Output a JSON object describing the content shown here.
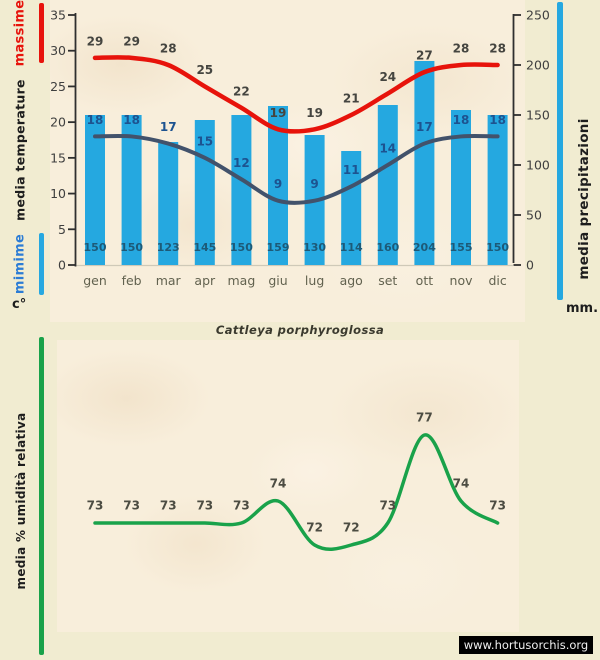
{
  "page": {
    "title": "Cattleya porphyroglossa",
    "watermark": "www.hortusorchis.org"
  },
  "labels": {
    "massime": "massime",
    "minime": "mimime",
    "temperature": "media temperature",
    "celsius": "c°",
    "precipitazioni": "media precipitazioni",
    "mm": "mm.",
    "umidita": "media % umidità relativa"
  },
  "colors": {
    "background": "#f1ecd1",
    "panel": "#f8eedb",
    "bar_blue": "#25a8e0",
    "massime_red": "#e7130b",
    "minime_dark": "#42526b",
    "humidity_green": "#19a24a",
    "axis": "#2f2f2f",
    "baseline": "#cfc9b8",
    "tick_label": "#3f3f3f",
    "month_label": "#62624f",
    "massime_label": "#454540",
    "minime_label": "#1d5390",
    "precip_label": "#1d5a78",
    "humidity_label": "#4c4c42"
  },
  "chart_data": [
    {
      "type": "bar",
      "title": "",
      "categories": [
        "gen",
        "feb",
        "mar",
        "apr",
        "mag",
        "giu",
        "lug",
        "ago",
        "set",
        "ott",
        "nov",
        "dic"
      ],
      "series": [
        {
          "name": "massime",
          "kind": "line",
          "axis": "left",
          "color": "#e7130b",
          "values": [
            29,
            29,
            28,
            25,
            22,
            19,
            19,
            21,
            24,
            27,
            28,
            28
          ]
        },
        {
          "name": "mimime",
          "kind": "line",
          "axis": "left",
          "color": "#42526b",
          "values": [
            18,
            18,
            17,
            15,
            12,
            9,
            9,
            11,
            14,
            17,
            18,
            18
          ]
        },
        {
          "name": "media precipitazioni",
          "kind": "bar",
          "axis": "right",
          "color": "#25a8e0",
          "values": [
            150,
            150,
            123,
            145,
            150,
            159,
            130,
            114,
            160,
            204,
            155,
            150
          ]
        }
      ],
      "left_axis": {
        "label": "media temperature",
        "unit": "c°",
        "min": 0,
        "max": 35,
        "step": 5
      },
      "right_axis": {
        "label": "media precipitazioni",
        "unit": "mm.",
        "min": 0,
        "max": 250,
        "step": 50
      },
      "grid": false,
      "legend_position": "left-and-right-color-bars"
    },
    {
      "type": "line",
      "title": "Cattleya porphyroglossa",
      "categories": [
        "gen",
        "feb",
        "mar",
        "apr",
        "mag",
        "giu",
        "lug",
        "ago",
        "set",
        "ott",
        "nov",
        "dic"
      ],
      "series": [
        {
          "name": "media % umidità relativa",
          "kind": "line",
          "color": "#19a24a",
          "values": [
            73,
            73,
            73,
            73,
            73,
            74,
            72,
            72,
            73,
            77,
            74,
            73
          ]
        }
      ],
      "left_axis": {
        "label": "media % umidità relativa",
        "unit": "%"
      },
      "grid": false,
      "legend_position": "left-color-bar"
    }
  ]
}
